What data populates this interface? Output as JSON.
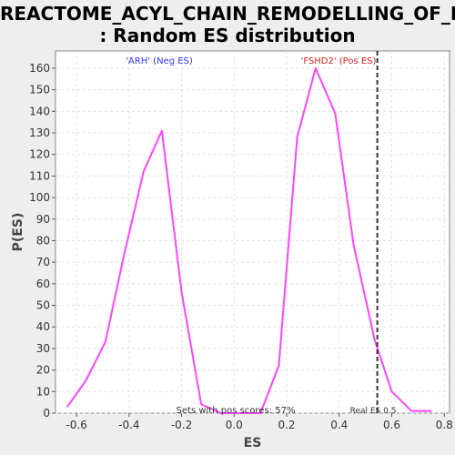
{
  "chart_data": {
    "type": "line",
    "title_line1": "REACTOME_ACYL_CHAIN_REMODELLING_OF_PI",
    "title_line2": ": Random ES distribution",
    "xlabel": "ES",
    "ylabel": "P(ES)",
    "xlim": [
      -0.68,
      0.82
    ],
    "ylim": [
      0,
      168
    ],
    "xticks": [
      -0.6,
      -0.4,
      -0.2,
      0.0,
      0.2,
      0.4,
      0.6,
      0.8
    ],
    "yticks": [
      0,
      10,
      20,
      30,
      40,
      50,
      60,
      70,
      80,
      90,
      100,
      110,
      120,
      130,
      140,
      150,
      160
    ],
    "grid": true,
    "series": [
      {
        "color": "#ff44ff",
        "points": [
          [
            -0.635,
            3
          ],
          [
            -0.565,
            15
          ],
          [
            -0.49,
            33
          ],
          [
            -0.42,
            73
          ],
          [
            -0.345,
            112
          ],
          [
            -0.275,
            131
          ],
          [
            -0.2,
            56
          ],
          [
            -0.125,
            4
          ],
          [
            -0.05,
            0
          ],
          [
            0.1,
            0
          ],
          [
            0.17,
            22
          ],
          [
            0.24,
            128
          ],
          [
            0.31,
            160
          ],
          [
            0.385,
            139
          ],
          [
            0.455,
            78
          ],
          [
            0.535,
            34
          ],
          [
            0.6,
            10
          ],
          [
            0.675,
            1
          ],
          [
            0.75,
            1
          ]
        ]
      }
    ],
    "real_es": 0.545,
    "annotations": {
      "neg": "'ARH' (Neg ES)",
      "pos": "'FSHD2' (Pos ES)",
      "sets": "Sets with pos scores: 57%",
      "real": "Real ES 0.5"
    },
    "colors": {
      "neg": "#3333ff",
      "pos": "#dd2222",
      "line": "#ff44ff"
    }
  }
}
